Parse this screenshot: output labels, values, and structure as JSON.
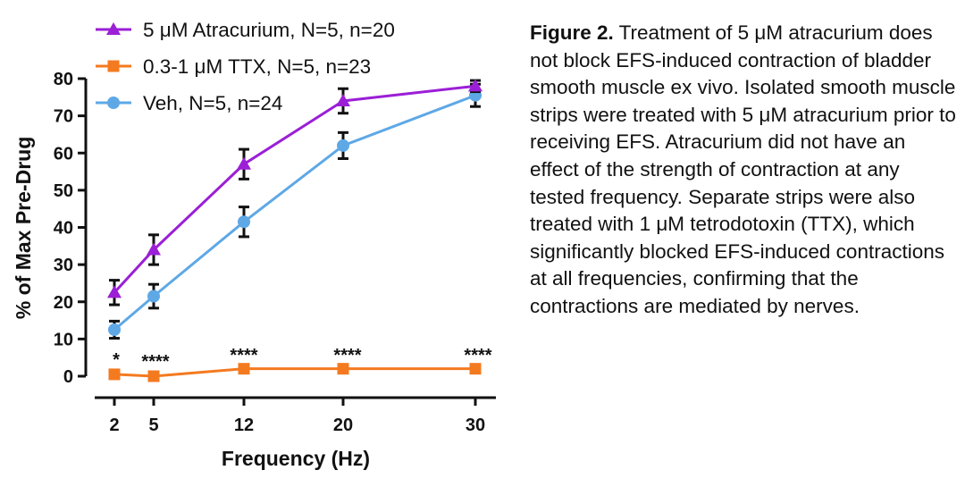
{
  "chart_data": {
    "type": "line",
    "x": [
      2,
      5,
      12,
      20,
      30
    ],
    "xlabel": "Frequency (Hz)",
    "ylabel": "% of Max Pre-Drug",
    "ylim": [
      0,
      80
    ],
    "yticks": [
      0,
      10,
      20,
      30,
      40,
      50,
      60,
      70,
      80
    ],
    "xtick_labels": [
      "2",
      "5",
      "12",
      "20",
      "30"
    ],
    "x_axis_scale": "categorical-like spacing (2, 5, 12, 20, 30)",
    "grid": false,
    "legend_position": "top-left",
    "series": [
      {
        "name": "5 μM Atracurium, N=5, n=20",
        "color": "#9b1fd6",
        "marker": "triangle",
        "values": [
          22.5,
          34,
          57,
          74,
          78
        ],
        "errors": [
          3.3,
          4.0,
          4.0,
          3.3,
          1.5
        ]
      },
      {
        "name": "0.3-1 μM TTX, N=5, n=23",
        "color": "#f47a20",
        "marker": "square",
        "values": [
          0.5,
          0,
          2,
          2,
          2
        ],
        "errors": [
          0,
          0,
          0,
          0,
          0
        ]
      },
      {
        "name": "Veh, N=5, n=24",
        "color": "#5ea8e6",
        "marker": "circle",
        "values": [
          12.5,
          21.5,
          41.5,
          62,
          75.5
        ],
        "errors": [
          2.3,
          3.2,
          4.0,
          3.5,
          3.0
        ]
      }
    ],
    "annotations": [
      "*",
      "****",
      "****",
      "****",
      "****"
    ]
  },
  "caption": {
    "bold": "Figure 2.",
    "text": "Treatment of 5 μM atracurium does not block EFS-induced contraction of bladder smooth muscle ex vivo. Isolated smooth muscle strips were treated with 5 μM atracurium prior to receiving EFS. Atracurium did not have an effect of the strength of contraction at any tested frequency. Separate strips were also treated with 1 μM tetrodotoxin (TTX), which significantly blocked EFS-induced contractions at all frequencies, confirming that the contractions are mediated by nerves."
  }
}
